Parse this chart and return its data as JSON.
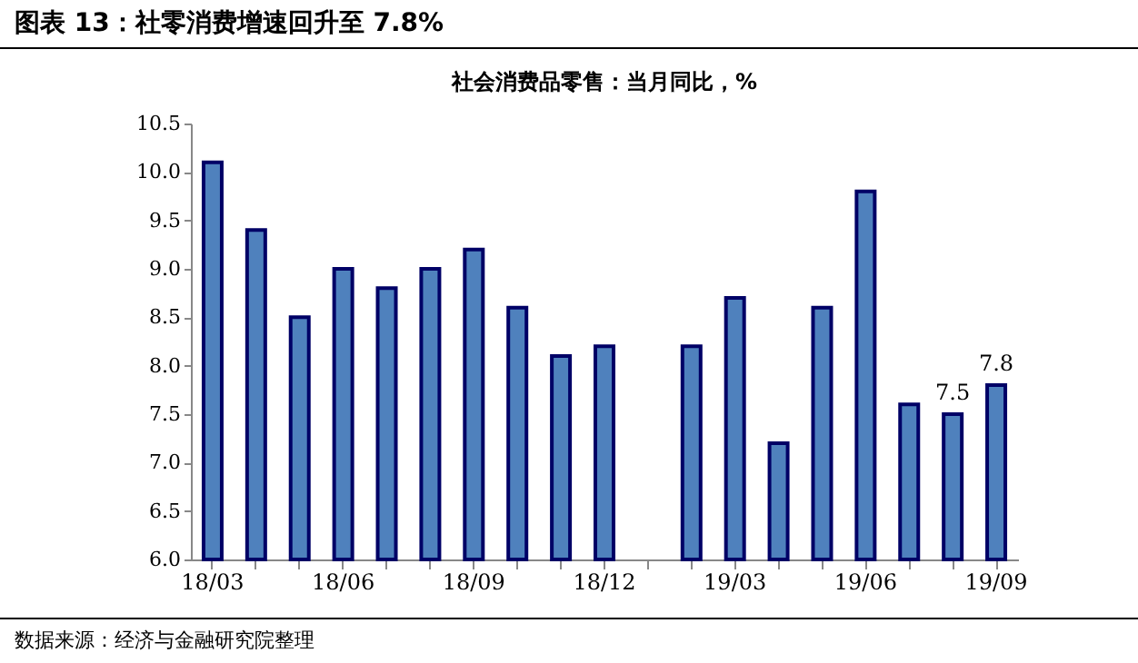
{
  "chart_data": {
    "type": "bar",
    "title": "图表 13：社零消费增速回升至 7.8%",
    "subtitle": "社会消费品零售：当月同比，%",
    "categories": [
      "18/03",
      null,
      null,
      "18/06",
      null,
      null,
      "18/09",
      null,
      null,
      "18/12",
      null,
      null,
      "19/03",
      null,
      null,
      "19/06",
      null,
      null,
      "19/09"
    ],
    "values": [
      10.1,
      9.4,
      8.5,
      9.0,
      8.8,
      9.0,
      9.2,
      8.6,
      8.1,
      8.2,
      null,
      8.2,
      8.7,
      7.2,
      8.6,
      9.8,
      7.6,
      7.5,
      7.8
    ],
    "value_labels": [
      null,
      null,
      null,
      null,
      null,
      null,
      null,
      null,
      null,
      null,
      null,
      null,
      null,
      null,
      null,
      null,
      null,
      "7.5",
      "7.8"
    ],
    "color": "#4f81bd",
    "ylim": [
      6.0,
      10.5
    ],
    "yticks": [
      {
        "value": 6,
        "label": "6.0"
      },
      6.5,
      {
        "value": 7,
        "label": "7.0"
      },
      7.5,
      {
        "value": 8,
        "label": "8.0"
      },
      8.5,
      {
        "value": 9,
        "label": "9.0"
      },
      9.5,
      {
        "value": 10,
        "label": "10.0"
      },
      10.5
    ],
    "grid": false,
    "annotations": [
      "数据来源：经济与金融研究院整理"
    ]
  }
}
